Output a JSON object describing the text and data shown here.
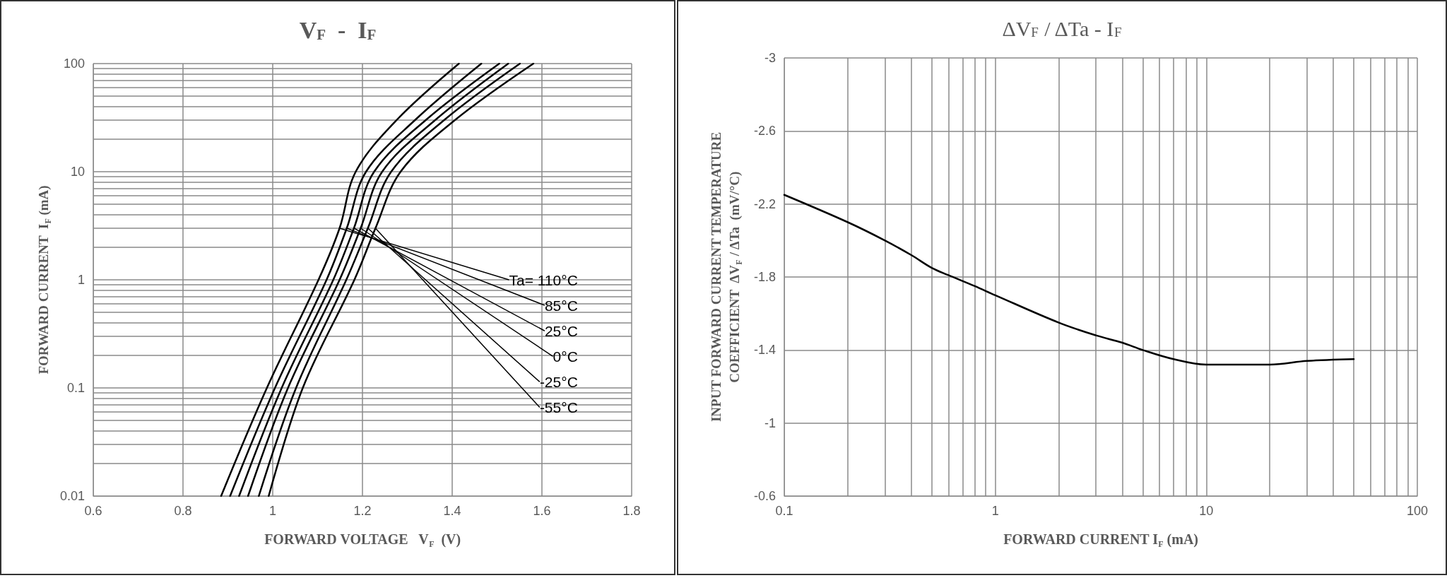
{
  "chart_data": [
    {
      "type": "line",
      "title": "V$_{F}$  -  I$_{F}$",
      "xlabel": "FORWARD VOLTAGE   V$_{F}$  (V)",
      "ylabel": "FORWARD CURRENT  I$_{F}$ (mA)",
      "log": "y",
      "grid": true,
      "marker": "none",
      "line_style": "solid",
      "legend": false,
      "xlim": [
        0.6,
        1.8
      ],
      "xticks": [
        0.6,
        0.8,
        1,
        1.2,
        1.4,
        1.6,
        1.8
      ],
      "ylim": [
        0.01,
        100
      ],
      "yticks": [
        0.01,
        0.1,
        1,
        10,
        100
      ],
      "series": [
        {
          "name": "Ta= 110°C",
          "color": "#000000",
          "x": [
            0.885,
            0.987,
            1.102,
            1.149,
            1.185,
            1.276,
            1.415
          ],
          "values": [
            0.01,
            0.1,
            1,
            3,
            10,
            30,
            100
          ]
        },
        {
          "name": "85°C",
          "color": "#000000",
          "x": [
            0.905,
            1.005,
            1.12,
            1.165,
            1.208,
            1.317,
            1.465
          ],
          "values": [
            0.01,
            0.1,
            1,
            3,
            10,
            30,
            100
          ]
        },
        {
          "name": "25°C",
          "color": "#000000",
          "x": [
            0.925,
            1.02,
            1.135,
            1.181,
            1.226,
            1.341,
            1.505
          ],
          "values": [
            0.01,
            0.1,
            1,
            3,
            10,
            30,
            100
          ]
        },
        {
          "name": "0°C",
          "color": "#000000",
          "x": [
            0.945,
            1.034,
            1.149,
            1.196,
            1.244,
            1.362,
            1.525
          ],
          "values": [
            0.01,
            0.1,
            1,
            3,
            10,
            30,
            100
          ]
        },
        {
          "name": "-25°C",
          "color": "#000000",
          "x": [
            0.969,
            1.052,
            1.164,
            1.212,
            1.264,
            1.382,
            1.551
          ],
          "values": [
            0.01,
            0.1,
            1,
            3,
            10,
            30,
            100
          ]
        },
        {
          "name": "-55°C",
          "color": "#000000",
          "x": [
            0.991,
            1.067,
            1.182,
            1.229,
            1.285,
            1.406,
            1.581
          ],
          "values": [
            0.01,
            0.1,
            1,
            3,
            10,
            30,
            100
          ]
        }
      ]
    },
    {
      "type": "line",
      "title": "ΔV$_{F}$ / ΔTa - I$_{F}$",
      "xlabel": "FORWARD CURRENT I$_{F}$ (mA)",
      "ylabel": "INPUT FORWARD CURRENT TEMPERATURE\nCOEFFICIENT  ΔV$_{F}$ / ΔTa  (mV/°C)",
      "log": "x",
      "grid": true,
      "marker": "none",
      "line_style": "solid",
      "legend": false,
      "xlim": [
        0.1,
        100
      ],
      "xticks": [
        0.1,
        1,
        10,
        100
      ],
      "ylim": [
        -0.6,
        -3
      ],
      "yticks": [
        -3,
        -2.6,
        -2.2,
        -1.8,
        -1.4,
        -1,
        -0.6
      ],
      "series": [
        {
          "color": "#000000",
          "x": [
            0.1,
            0.2,
            0.3,
            0.4,
            0.5,
            0.6,
            0.8,
            1,
            2,
            3,
            4,
            5,
            7,
            10,
            15,
            20,
            30,
            50
          ],
          "values": [
            -2.25,
            -2.1,
            -2.0,
            -1.92,
            -1.85,
            -1.81,
            -1.75,
            -1.7,
            -1.55,
            -1.48,
            -1.44,
            -1.4,
            -1.35,
            -1.32,
            -1.32,
            -1.32,
            -1.34,
            -1.35
          ]
        }
      ]
    }
  ]
}
